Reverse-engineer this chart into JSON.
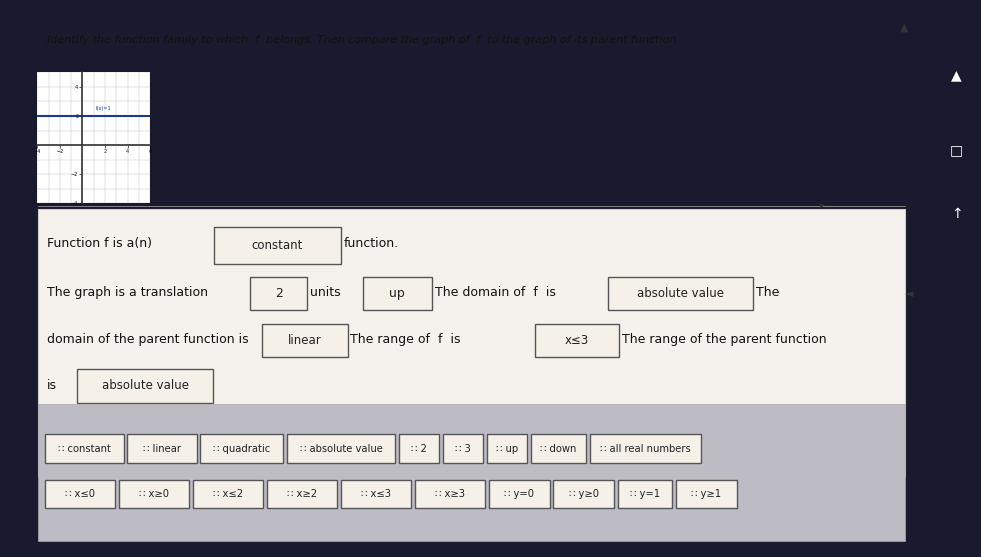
{
  "title": "Identify the function family to which  f  belongs. Then compare the graph of  f  to the graph of its parent function.",
  "bg_color": "#1a1a2e",
  "paper_color": "#f0ede8",
  "panel_color": "#c8c8d0",
  "box_fill": "#f5f0e8",
  "box_border": "#555555",
  "sentence1": "Function f is a(n)",
  "sentence1_end": "function.",
  "sentence2_start": "The graph is a translation",
  "sentence2_mid1": "units",
  "sentence2_mid2": "The domain of  f  is",
  "sentence2_end": "The",
  "sentence3_start": "domain of the parent function is",
  "sentence3_mid": "The range of  f  is",
  "sentence3_end": "The range of the parent function",
  "sentence4_start": "is",
  "bank_row1": [
    "∷ constant",
    "∷ linear",
    "∷ quadratic",
    "∷ absolute value",
    "∷ 2",
    "∷ 3",
    "∷ up",
    "∷ down",
    "∷ all real numbers"
  ],
  "bank_row2": [
    "∷ x≤0",
    "∷ x≥0",
    "∷ x≤2",
    "∷ x≥2",
    "∷ x≤3",
    "∷ x≥3",
    "∷ y=0",
    "∷ y≥0",
    "∷ y=1",
    "∷ y≥1"
  ]
}
